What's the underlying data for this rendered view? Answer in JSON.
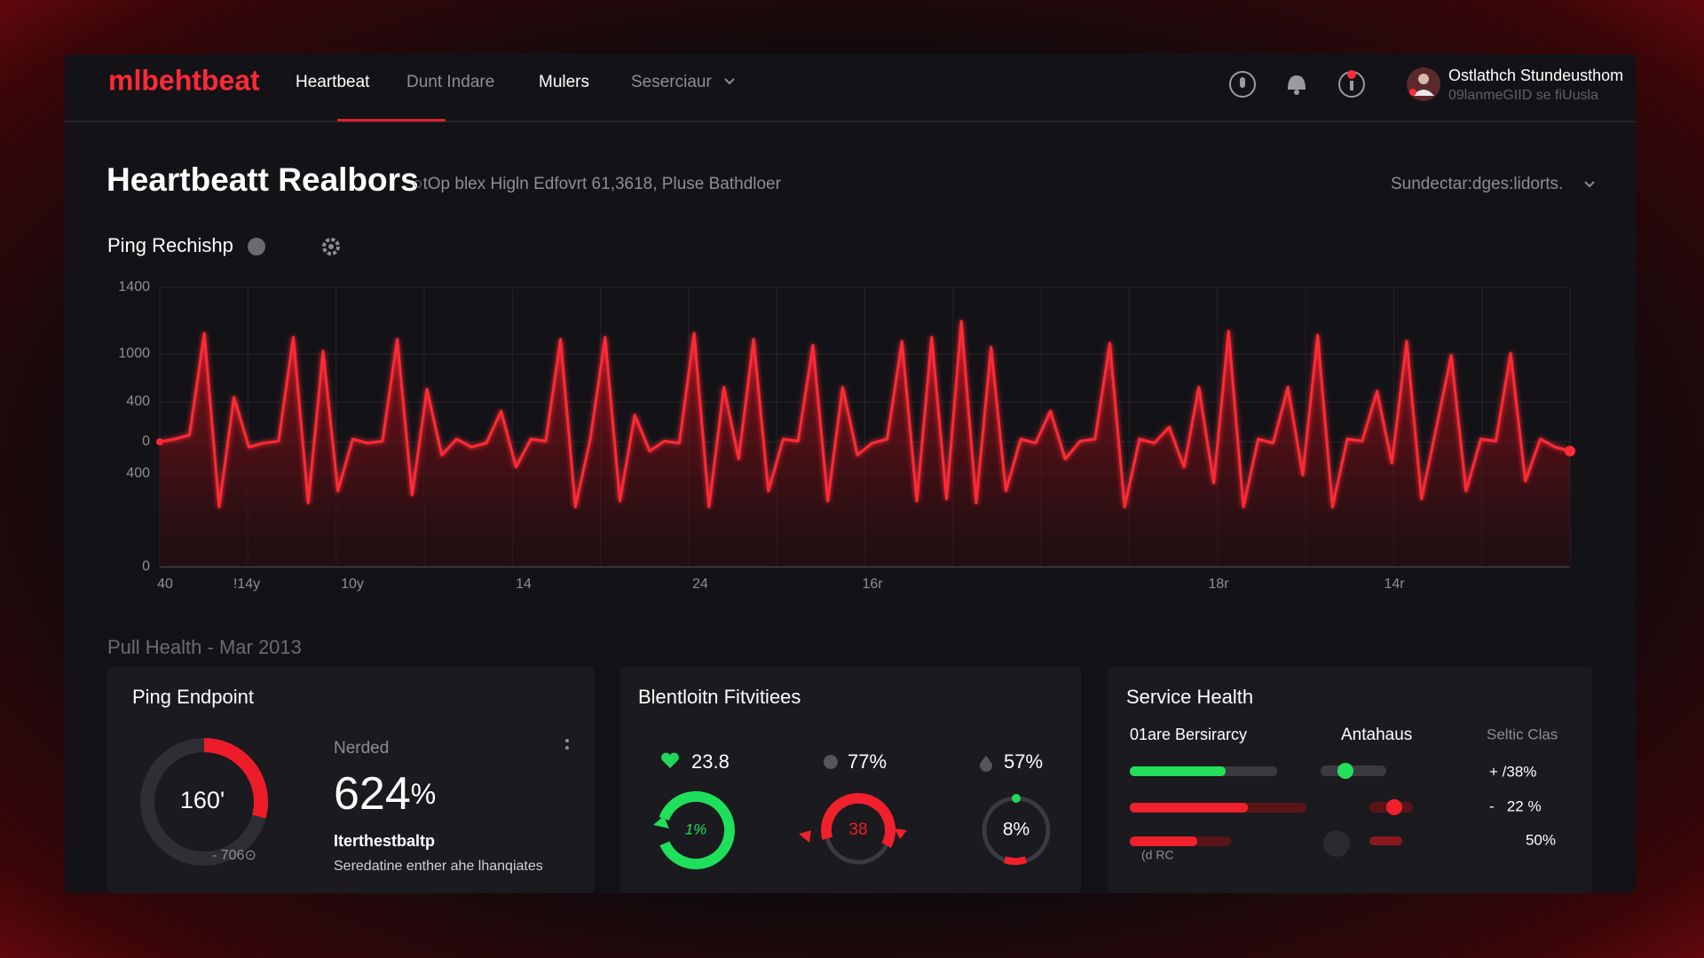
{
  "nav": {
    "logo": "mlbehtbeat",
    "items": [
      "Heartbeat",
      "Dunt Indare",
      "Mulers",
      "Seserciaur"
    ],
    "user": {
      "name": "Ostlathch Stundeusthom",
      "subtitle": "09lanmeGIID se fiUusla"
    }
  },
  "header": {
    "title": "Heartbeatt Realbors",
    "subtitle": "○tOp blex Higln Edfovrt 61,3618, Pluse Bathdloer",
    "filter": "Sundectar:dges:lidorts."
  },
  "plot": {
    "title": "Ping Rechishp",
    "type": "line",
    "color": "#ff2a36",
    "ylim": [
      0,
      1400
    ],
    "y_labels": [
      "1400",
      "1000",
      "400",
      "0",
      "400",
      "0"
    ],
    "x_labels": [
      "40",
      "!14y",
      "10y",
      "14",
      "24",
      "16r",
      "18r",
      "14r"
    ],
    "values": [
      626,
      640,
      660,
      1170,
      300,
      850,
      600,
      620,
      630,
      1150,
      320,
      1080,
      380,
      640,
      620,
      630,
      1140,
      360,
      890,
      560,
      640,
      600,
      620,
      780,
      500,
      640,
      630,
      1140,
      300,
      640,
      1150,
      330,
      760,
      580,
      630,
      620,
      1170,
      300,
      900,
      540,
      1140,
      380,
      640,
      630,
      1110,
      330,
      900,
      560,
      620,
      640,
      1130,
      330,
      1150,
      340,
      1230,
      320,
      1100,
      380,
      640,
      620,
      780,
      540,
      630,
      640,
      1120,
      300,
      640,
      620,
      700,
      500,
      900,
      420,
      1180,
      300,
      640,
      620,
      900,
      460,
      1160,
      300,
      640,
      630,
      880,
      520,
      1130,
      340,
      700,
      1060,
      380,
      640,
      630,
      1070,
      430,
      640,
      600,
      580
    ]
  },
  "section": {
    "title": "Pull Health - Mar 2013"
  },
  "cards": [
    {
      "title": "Ping Endpoint",
      "gauge_label": "160'",
      "gauge_sub": "- 706⊙",
      "metric_label": "Nerded",
      "metric_value": "624",
      "metric_unit": "%",
      "name": "Iterthestbaltp",
      "description": "Seredatine enther ahe lhanqiates"
    },
    {
      "title": "Blentloitn Fitvitiees",
      "stats": [
        "23.8",
        "77%",
        "57%"
      ],
      "rings": [
        "1%",
        "38",
        "8%"
      ]
    },
    {
      "title": "Service Health",
      "columns": [
        "01are Bersirarcy",
        "Antahaus",
        "Seltic Clas"
      ],
      "values": [
        "+ /38%",
        "-   22 %",
        "50%"
      ],
      "note": "(d RC"
    }
  ]
}
